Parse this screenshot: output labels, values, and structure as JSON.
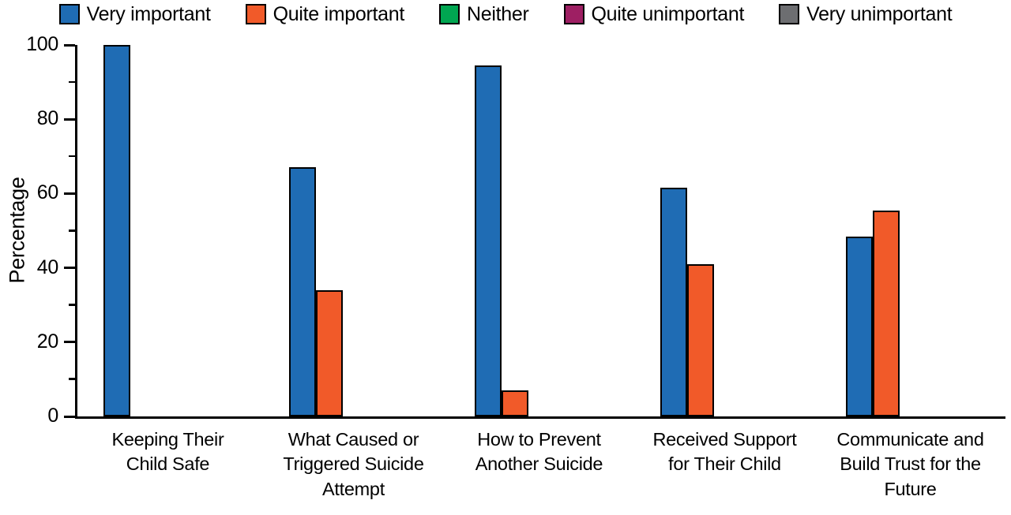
{
  "chart_data": {
    "type": "bar",
    "title": "",
    "xlabel": "",
    "ylabel": "Percentage",
    "ylim": [
      0,
      100
    ],
    "ytick_major": 20,
    "ytick_minor": 10,
    "grid": false,
    "legend_position": "top",
    "axis_color": "#000000",
    "bar_outline_color": "#000000",
    "categories": [
      "Keeping Their Child Safe",
      "What Caused or Triggered Suicide Attempt",
      "How to Prevent Another Suicide",
      "Received Support for Their Child",
      "Communicate and Build Trust for the Future"
    ],
    "category_lines": [
      [
        "Keeping Their",
        "Child Safe"
      ],
      [
        "What Caused or",
        "Triggered Suicide",
        "Attempt"
      ],
      [
        "How to Prevent",
        "Another Suicide"
      ],
      [
        "Received Support",
        "for Their Child"
      ],
      [
        "Communicate and",
        "Build Trust for the",
        "Future"
      ]
    ],
    "series": [
      {
        "name": "Very important",
        "color": "#1f6cb4",
        "values": [
          100,
          67,
          94.5,
          61.5,
          48.5
        ]
      },
      {
        "name": "Quite important",
        "color": "#f15a29",
        "values": [
          0,
          34,
          7,
          41,
          55.5
        ]
      },
      {
        "name": "Neither",
        "color": "#00a651",
        "values": [
          0,
          0,
          0,
          0,
          0
        ]
      },
      {
        "name": "Quite unimportant",
        "color": "#9e1f63",
        "values": [
          0,
          0,
          0,
          0,
          0
        ]
      },
      {
        "name": "Very unimportant",
        "color": "#6d6e71",
        "values": [
          0,
          0,
          0,
          0,
          0
        ]
      }
    ]
  }
}
